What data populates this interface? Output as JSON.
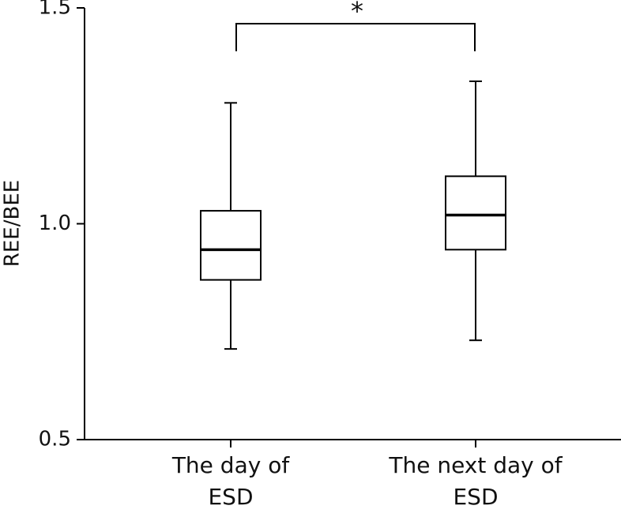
{
  "chart_data": {
    "type": "box",
    "ylabel": "REE/BEE",
    "annotation": "*",
    "categories": [
      "The day of\nESD",
      "The next day of\nESD"
    ],
    "stats": [
      {
        "whislo": 0.71,
        "q1": 0.87,
        "med": 0.94,
        "q3": 1.03,
        "whishi": 1.28
      },
      {
        "whislo": 0.73,
        "q1": 0.94,
        "med": 1.02,
        "q3": 1.11,
        "whishi": 1.33
      }
    ],
    "ylim": [
      0.5,
      1.5
    ],
    "yticks": [
      0.5,
      {
        "value": 1,
        "label": "1.0"
      },
      1.5
    ],
    "color": "#000000"
  }
}
